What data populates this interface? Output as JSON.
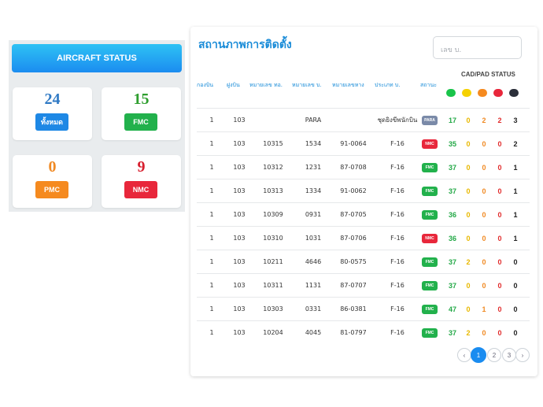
{
  "aircraft_status": {
    "title": "AIRCRAFT STATUS",
    "cards": [
      {
        "count": "24",
        "label": "ทั้งหมด",
        "count_color": "#2f79c4",
        "badge_color": "#1e88e5"
      },
      {
        "count": "15",
        "label": "FMC",
        "count_color": "#2e9e2e",
        "badge_color": "#22b14c"
      },
      {
        "count": "0",
        "label": "PMC",
        "count_color": "#f08a24",
        "badge_color": "#f58a1f"
      },
      {
        "count": "9",
        "label": "NMC",
        "count_color": "#d7202f",
        "badge_color": "#e8273b"
      }
    ]
  },
  "table_panel": {
    "title": "สถานภาพการติดตั้ง",
    "search_placeholder": "เลข บ.",
    "cad_pad_title": "CAD/PAD STATUS",
    "columns": [
      "กองบิน",
      "ฝูงบิน",
      "หมายเลข ทอ.",
      "หมายเลข บ.",
      "หมายเลขหาง",
      "ประเภท บ.",
      "สถานะ"
    ],
    "status_dot_colors": [
      "#19c44a",
      "#f5d100",
      "#f58a1f",
      "#e8273b",
      "#2b2f3a"
    ],
    "count_colors": [
      "#22a846",
      "#e8b800",
      "#f08a24",
      "#e12a2a",
      "#222222"
    ],
    "rows": [
      {
        "wing": "1",
        "squadron": "103",
        "rtaf_no": "",
        "ac_no": "PARA",
        "tail_no": "",
        "type": "ชุดยิงขีพนักบิน",
        "status": "PARA",
        "status_color": "#7a8aa8",
        "counts": [
          "17",
          "0",
          "2",
          "2",
          "3"
        ]
      },
      {
        "wing": "1",
        "squadron": "103",
        "rtaf_no": "10315",
        "ac_no": "1534",
        "tail_no": "91-0064",
        "type": "F-16",
        "status": "NMC",
        "status_color": "#e8273b",
        "counts": [
          "35",
          "0",
          "0",
          "0",
          "2"
        ]
      },
      {
        "wing": "1",
        "squadron": "103",
        "rtaf_no": "10312",
        "ac_no": "1231",
        "tail_no": "87-0708",
        "type": "F-16",
        "status": "FMC",
        "status_color": "#22b14c",
        "counts": [
          "37",
          "0",
          "0",
          "0",
          "1"
        ]
      },
      {
        "wing": "1",
        "squadron": "103",
        "rtaf_no": "10313",
        "ac_no": "1334",
        "tail_no": "91-0062",
        "type": "F-16",
        "status": "FMC",
        "status_color": "#22b14c",
        "counts": [
          "37",
          "0",
          "0",
          "0",
          "1"
        ]
      },
      {
        "wing": "1",
        "squadron": "103",
        "rtaf_no": "10309",
        "ac_no": "0931",
        "tail_no": "87-0705",
        "type": "F-16",
        "status": "FMC",
        "status_color": "#22b14c",
        "counts": [
          "36",
          "0",
          "0",
          "0",
          "1"
        ]
      },
      {
        "wing": "1",
        "squadron": "103",
        "rtaf_no": "10310",
        "ac_no": "1031",
        "tail_no": "87-0706",
        "type": "F-16",
        "status": "NMC",
        "status_color": "#e8273b",
        "counts": [
          "36",
          "0",
          "0",
          "0",
          "1"
        ]
      },
      {
        "wing": "1",
        "squadron": "103",
        "rtaf_no": "10211",
        "ac_no": "4646",
        "tail_no": "80-0575",
        "type": "F-16",
        "status": "FMC",
        "status_color": "#22b14c",
        "counts": [
          "37",
          "2",
          "0",
          "0",
          "0"
        ]
      },
      {
        "wing": "1",
        "squadron": "103",
        "rtaf_no": "10311",
        "ac_no": "1131",
        "tail_no": "87-0707",
        "type": "F-16",
        "status": "FMC",
        "status_color": "#22b14c",
        "counts": [
          "37",
          "0",
          "0",
          "0",
          "0"
        ]
      },
      {
        "wing": "1",
        "squadron": "103",
        "rtaf_no": "10303",
        "ac_no": "0331",
        "tail_no": "86-0381",
        "type": "F-16",
        "status": "FMC",
        "status_color": "#22b14c",
        "counts": [
          "47",
          "0",
          "1",
          "0",
          "0"
        ]
      },
      {
        "wing": "1",
        "squadron": "103",
        "rtaf_no": "10204",
        "ac_no": "4045",
        "tail_no": "81-0797",
        "type": "F-16",
        "status": "FMC",
        "status_color": "#22b14c",
        "counts": [
          "37",
          "2",
          "0",
          "0",
          "0"
        ]
      }
    ],
    "pagination": {
      "prev": "‹",
      "pages": [
        "1",
        "2",
        "3"
      ],
      "current": "1",
      "next": "›"
    }
  }
}
